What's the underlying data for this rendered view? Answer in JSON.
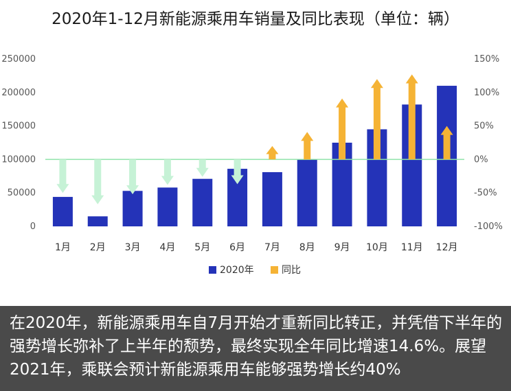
{
  "chart_data": {
    "type": "bar",
    "title": "2020年1-12月新能源乘用车销量及同比表现（单位：辆）",
    "categories": [
      "1月",
      "2月",
      "3月",
      "4月",
      "5月",
      "6月",
      "7月",
      "8月",
      "9月",
      "10月",
      "11月",
      "12月"
    ],
    "series": [
      {
        "name": "2020年",
        "type": "bar",
        "axis": "left",
        "color": "#2433b8",
        "values": [
          44000,
          15000,
          53000,
          58000,
          71000,
          86000,
          81000,
          100000,
          125000,
          145000,
          182000,
          210000
        ]
      },
      {
        "name": "同比",
        "type": "arrow",
        "axis": "right",
        "unit": "%",
        "color_positive": "#f5b335",
        "color_negative": "#c6f2d6",
        "values": [
          -50,
          -67,
          -52,
          -38,
          -26,
          -37,
          20,
          41,
          91,
          120,
          127,
          50
        ]
      }
    ],
    "ylim_left": [
      0,
      250000
    ],
    "yticks_left": [
      "0",
      "50000",
      "100000",
      "150000",
      "200000",
      "250000"
    ],
    "ylim_right": [
      -100,
      150
    ],
    "yticks_right": [
      "-100%",
      "-50%",
      "0%",
      "50%",
      "100%",
      "150%"
    ],
    "zero_line_color": "#8fe3a9",
    "grid": false,
    "legend_position": "bottom"
  },
  "caption": {
    "text": "在2020年，新能源乘用车自7月开始才重新同比转正，并凭借下半年的强势增长弥补了上半年的颓势，最终实现全年同比增速14.6%。展望2021年，乘联会预计新能源乘用车能够强势增长约40%"
  }
}
